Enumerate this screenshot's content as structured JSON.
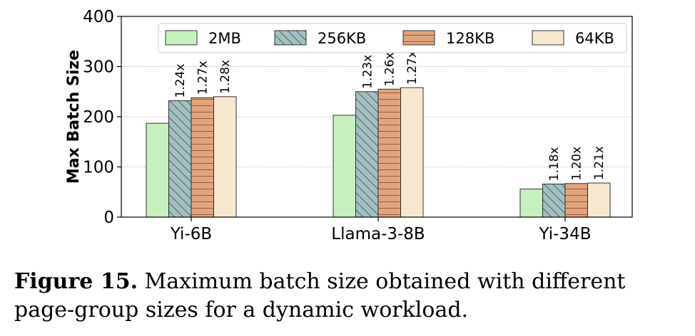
{
  "chart_data": {
    "type": "bar",
    "categories": [
      "Yi-6B",
      "Llama-3-8B",
      "Yi-34B"
    ],
    "series": [
      {
        "name": "2MB",
        "values": [
          187,
          203,
          56
        ],
        "color": "#c6f0bd",
        "pattern": "none",
        "labels": [
          "",
          "",
          ""
        ]
      },
      {
        "name": "256KB",
        "values": [
          232,
          250,
          66
        ],
        "color": "#a4bfc0",
        "pattern": "backslash",
        "labels": [
          "1.24x",
          "1.23x",
          "1.18x"
        ]
      },
      {
        "name": "128KB",
        "values": [
          238,
          255,
          67
        ],
        "color": "#e0a57e",
        "pattern": "horizontal",
        "labels": [
          "1.27x",
          "1.26x",
          "1.20x"
        ]
      },
      {
        "name": "64KB",
        "values": [
          240,
          258,
          68
        ],
        "color": "#f6e8cf",
        "pattern": "none",
        "labels": [
          "1.28x",
          "1.27x",
          "1.21x"
        ]
      }
    ],
    "ylabel": "Max Batch Size",
    "xlabel": "",
    "ylim": [
      0,
      400
    ],
    "yticks": [
      0,
      100,
      200,
      300,
      400
    ],
    "grid": "y-dotted",
    "legend": "top"
  },
  "caption": {
    "label": "Figure 15.",
    "text": " Maximum batch size obtained with different page-group sizes for a dynamic workload."
  }
}
